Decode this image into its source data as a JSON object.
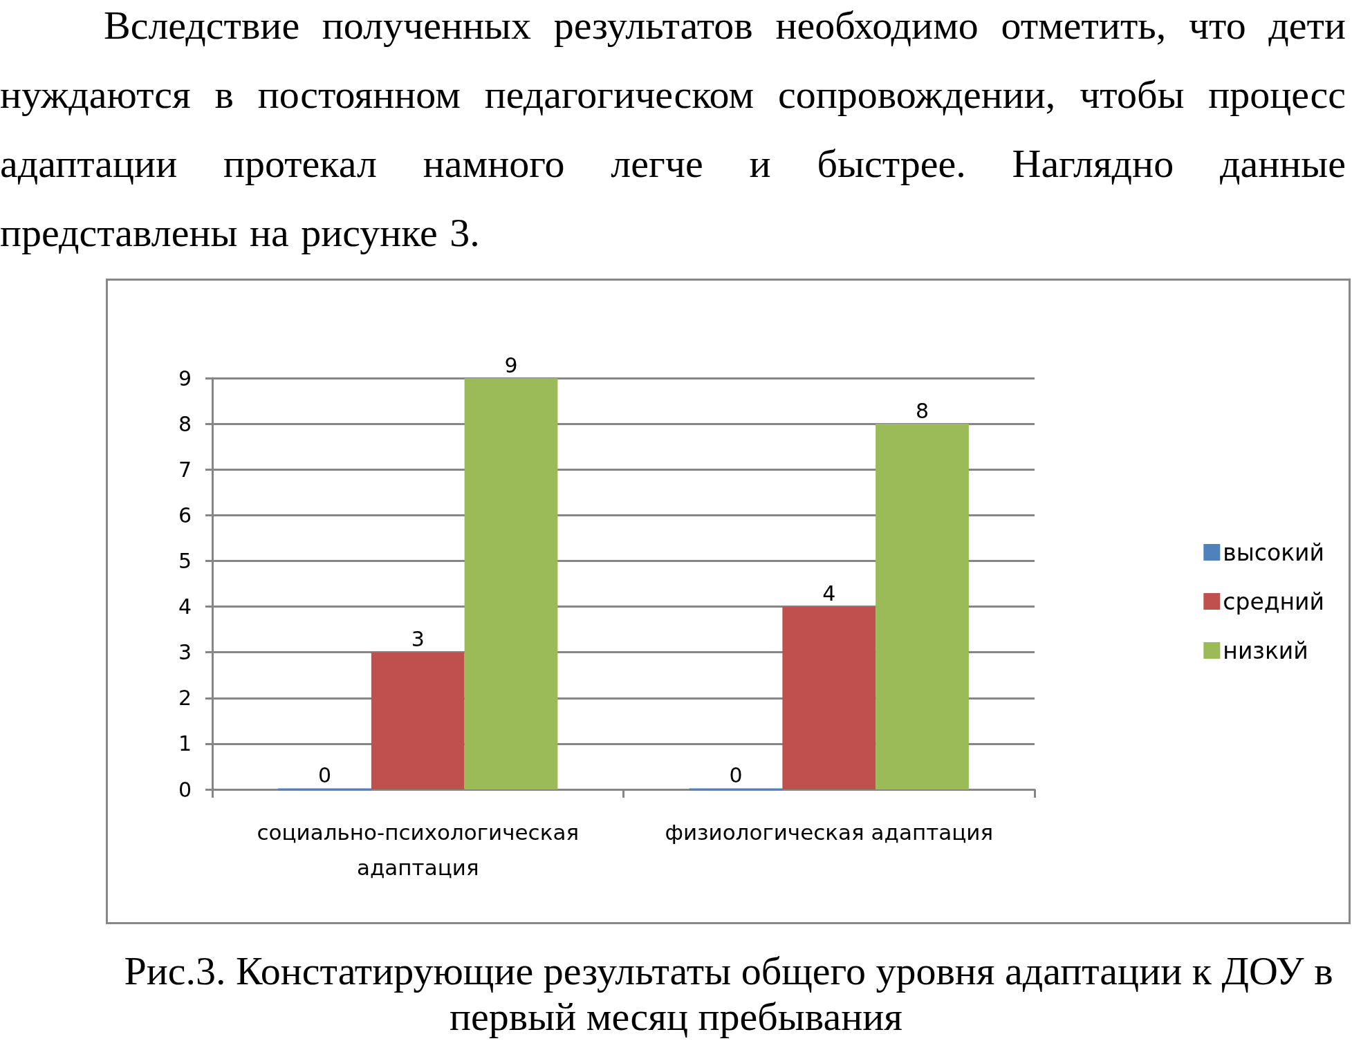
{
  "chart_data": {
    "type": "bar",
    "title": "Рис.3. Констатирующие результаты общего уровня адаптации к ДОУ в первый месяц пребывания",
    "annotations": [
      "Вследствие полученных результатов необходимо отметить, что дети нуждаются в постоянном педагогическом сопровождении, чтобы процесс адаптации протекал намного легче и быстрее. Наглядно данные представлены на рисунке 3."
    ],
    "categories": [
      "социально-психологическая адаптация",
      "физиологическая адаптация"
    ],
    "series": [
      {
        "name": "высокий",
        "color": "#4f81bd",
        "values": [
          0,
          0
        ]
      },
      {
        "name": "средний",
        "color": "#c0504d",
        "values": [
          3,
          4
        ]
      },
      {
        "name": "низкий",
        "color": "#9bbb59",
        "values": [
          9,
          8
        ]
      }
    ],
    "ylim": [
      0,
      9
    ],
    "yticks": [
      0,
      1,
      2,
      3,
      4,
      5,
      6,
      7,
      8,
      9
    ],
    "grid": "y",
    "legend": "right",
    "data_labels": true
  }
}
